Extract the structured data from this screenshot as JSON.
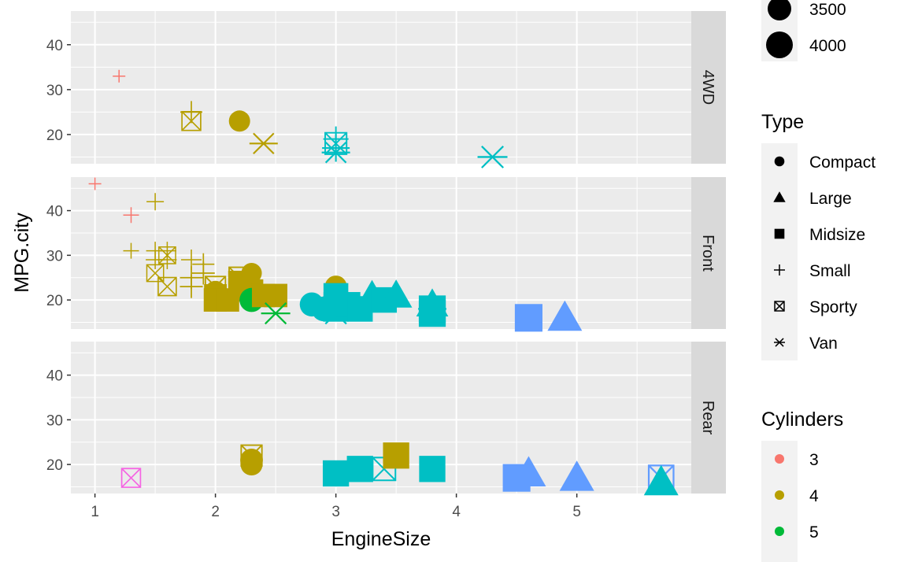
{
  "chart_data": {
    "type": "scatter",
    "title": "",
    "xlabel": "EngineSize",
    "ylabel": "MPG.city",
    "xlim": [
      0.8,
      5.95
    ],
    "ylim": [
      13.5,
      47.5
    ],
    "x_ticks": [
      1,
      2,
      3,
      4,
      5
    ],
    "y_ticks": [
      20,
      30,
      40
    ],
    "grid": true,
    "facets": [
      "4WD",
      "Front",
      "Rear"
    ],
    "legend_placement": "right",
    "legends": {
      "size": {
        "title": "",
        "entries": [
          {
            "label": "3500",
            "value": 3500
          },
          {
            "label": "4000",
            "value": 4000
          }
        ]
      },
      "type": {
        "title": "Type",
        "entries": [
          {
            "label": "Compact",
            "shape": "circle"
          },
          {
            "label": "Large",
            "shape": "triangle"
          },
          {
            "label": "Midsize",
            "shape": "square"
          },
          {
            "label": "Small",
            "shape": "plus"
          },
          {
            "label": "Sporty",
            "shape": "boxx"
          },
          {
            "label": "Van",
            "shape": "asterisk"
          }
        ]
      },
      "cylinders": {
        "title": "Cylinders",
        "entries": [
          {
            "label": "3",
            "color": "#F8766D"
          },
          {
            "label": "4",
            "color": "#B79F00"
          },
          {
            "label": "5",
            "color": "#00BA38"
          }
        ]
      }
    },
    "colors": {
      "3": "#F8766D",
      "4": "#B79F00",
      "5": "#00BA38",
      "6": "#00BFC4",
      "8": "#619CFF",
      "rotary": "#F564E3"
    },
    "points": {
      "4WD": [
        {
          "x": 1.2,
          "y": 33,
          "type": "Small",
          "cyl": "3",
          "w": 1700
        },
        {
          "x": 1.8,
          "y": 25,
          "type": "Small",
          "cyl": "4",
          "w": 2900
        },
        {
          "x": 1.8,
          "y": 23,
          "type": "Sporty",
          "cyl": "4",
          "w": 2900
        },
        {
          "x": 2.2,
          "y": 23,
          "type": "Compact",
          "cyl": "4",
          "w": 3100
        },
        {
          "x": 2.4,
          "y": 18,
          "type": "Van",
          "cyl": "4",
          "w": 3700
        },
        {
          "x": 3.0,
          "y": 19,
          "type": "Small",
          "cyl": "6",
          "w": 3300
        },
        {
          "x": 3.0,
          "y": 18,
          "type": "Sporty",
          "cyl": "6",
          "w": 3300
        },
        {
          "x": 3.0,
          "y": 16,
          "type": "Van",
          "cyl": "6",
          "w": 3700
        },
        {
          "x": 3.0,
          "y": 17,
          "type": "Small",
          "cyl": "6",
          "w": 3600
        },
        {
          "x": 4.3,
          "y": 15,
          "type": "Van",
          "cyl": "6",
          "w": 3900
        }
      ],
      "Front": [
        {
          "x": 1.0,
          "y": 46,
          "type": "Small",
          "cyl": "3",
          "w": 1700
        },
        {
          "x": 1.3,
          "y": 39,
          "type": "Small",
          "cyl": "3",
          "w": 2100
        },
        {
          "x": 1.5,
          "y": 42,
          "type": "Small",
          "cyl": "4",
          "w": 2300
        },
        {
          "x": 1.3,
          "y": 31,
          "type": "Small",
          "cyl": "4",
          "w": 2100
        },
        {
          "x": 1.5,
          "y": 31,
          "type": "Small",
          "cyl": "4",
          "w": 2400
        },
        {
          "x": 1.5,
          "y": 29,
          "type": "Small",
          "cyl": "4",
          "w": 2500
        },
        {
          "x": 1.6,
          "y": 31,
          "type": "Small",
          "cyl": "4",
          "w": 2400
        },
        {
          "x": 1.6,
          "y": 29,
          "type": "Small",
          "cyl": "4",
          "w": 2500
        },
        {
          "x": 1.5,
          "y": 26,
          "type": "Sporty",
          "cyl": "4",
          "w": 2600
        },
        {
          "x": 1.6,
          "y": 30,
          "type": "Sporty",
          "cyl": "4",
          "w": 2600
        },
        {
          "x": 1.6,
          "y": 23,
          "type": "Sporty",
          "cyl": "4",
          "w": 2800
        },
        {
          "x": 1.8,
          "y": 29,
          "type": "Small",
          "cyl": "4",
          "w": 2700
        },
        {
          "x": 1.8,
          "y": 25,
          "type": "Small",
          "cyl": "4",
          "w": 3000
        },
        {
          "x": 1.9,
          "y": 28,
          "type": "Small",
          "cyl": "4",
          "w": 2900
        },
        {
          "x": 1.9,
          "y": 26,
          "type": "Small",
          "cyl": "4",
          "w": 3000
        },
        {
          "x": 1.8,
          "y": 23,
          "type": "Small",
          "cyl": "4",
          "w": 3000
        },
        {
          "x": 2.0,
          "y": 23,
          "type": "Sporty",
          "cyl": "4",
          "w": 3100
        },
        {
          "x": 2.0,
          "y": 22,
          "type": "Compact",
          "cyl": "4",
          "w": 3000
        },
        {
          "x": 2.0,
          "y": 21,
          "type": "Midsize",
          "cyl": "4",
          "w": 3300
        },
        {
          "x": 2.0,
          "y": 20,
          "type": "Midsize",
          "cyl": "4",
          "w": 3400
        },
        {
          "x": 2.1,
          "y": 20,
          "type": "Midsize",
          "cyl": "4",
          "w": 3400
        },
        {
          "x": 2.2,
          "y": 25,
          "type": "Sporty",
          "cyl": "4",
          "w": 3200
        },
        {
          "x": 2.2,
          "y": 24,
          "type": "Midsize",
          "cyl": "4",
          "w": 3300
        },
        {
          "x": 2.2,
          "y": 22,
          "type": "Compact",
          "cyl": "4",
          "w": 3100
        },
        {
          "x": 2.3,
          "y": 22,
          "type": "Midsize",
          "cyl": "4",
          "w": 3400
        },
        {
          "x": 2.4,
          "y": 21,
          "type": "Midsize",
          "cyl": "4",
          "w": 3400
        },
        {
          "x": 2.3,
          "y": 26,
          "type": "Compact",
          "cyl": "4",
          "w": 3000
        },
        {
          "x": 2.5,
          "y": 21,
          "type": "Midsize",
          "cyl": "4",
          "w": 3400
        },
        {
          "x": 2.3,
          "y": 20,
          "type": "Compact",
          "cyl": "5",
          "w": 3500
        },
        {
          "x": 2.5,
          "y": 17,
          "type": "Van",
          "cyl": "5",
          "w": 3800
        },
        {
          "x": 2.8,
          "y": 19,
          "type": "Compact",
          "cyl": "6",
          "w": 3500
        },
        {
          "x": 2.9,
          "y": 18,
          "type": "Compact",
          "cyl": "6",
          "w": 3600
        },
        {
          "x": 3.0,
          "y": 23,
          "type": "Compact",
          "cyl": "4",
          "w": 3200
        },
        {
          "x": 3.0,
          "y": 21,
          "type": "Midsize",
          "cyl": "6",
          "w": 3600
        },
        {
          "x": 3.0,
          "y": 19,
          "type": "Midsize",
          "cyl": "6",
          "w": 3600
        },
        {
          "x": 3.0,
          "y": 18,
          "type": "Midsize",
          "cyl": "6",
          "w": 3700
        },
        {
          "x": 3.0,
          "y": 17,
          "type": "Van",
          "cyl": "6",
          "w": 3800
        },
        {
          "x": 3.1,
          "y": 19,
          "type": "Midsize",
          "cyl": "6",
          "w": 3600
        },
        {
          "x": 3.2,
          "y": 18,
          "type": "Midsize",
          "cyl": "6",
          "w": 3700
        },
        {
          "x": 3.3,
          "y": 21,
          "type": "Large",
          "cyl": "6",
          "w": 3700
        },
        {
          "x": 3.4,
          "y": 20,
          "type": "Midsize",
          "cyl": "6",
          "w": 3700
        },
        {
          "x": 3.5,
          "y": 21,
          "type": "Large",
          "cyl": "6",
          "w": 3800
        },
        {
          "x": 3.8,
          "y": 19,
          "type": "Large",
          "cyl": "6",
          "w": 3800
        },
        {
          "x": 3.8,
          "y": 18,
          "type": "Midsize",
          "cyl": "6",
          "w": 3900
        },
        {
          "x": 3.8,
          "y": 17,
          "type": "Midsize",
          "cyl": "6",
          "w": 3900
        },
        {
          "x": 3.8,
          "y": 18,
          "type": "Van",
          "cyl": "6",
          "w": 3700
        },
        {
          "x": 4.6,
          "y": 16,
          "type": "Midsize",
          "cyl": "8",
          "w": 4000
        },
        {
          "x": 4.9,
          "y": 16,
          "type": "Large",
          "cyl": "8",
          "w": 4100
        }
      ],
      "Rear": [
        {
          "x": 1.3,
          "y": 17,
          "type": "Sporty",
          "cyl": "rotary",
          "w": 2900
        },
        {
          "x": 2.3,
          "y": 22,
          "type": "Sporty",
          "cyl": "4",
          "w": 3200
        },
        {
          "x": 2.3,
          "y": 20,
          "type": "Compact",
          "cyl": "4",
          "w": 3200
        },
        {
          "x": 2.3,
          "y": 21,
          "type": "Compact",
          "cyl": "4",
          "w": 3300
        },
        {
          "x": 3.5,
          "y": 22,
          "type": "Midsize",
          "cyl": "4",
          "w": 3800
        },
        {
          "x": 3.0,
          "y": 18,
          "type": "Midsize",
          "cyl": "6",
          "w": 3800
        },
        {
          "x": 3.2,
          "y": 19,
          "type": "Midsize",
          "cyl": "6",
          "w": 3800
        },
        {
          "x": 3.4,
          "y": 19,
          "type": "Sporty",
          "cyl": "6",
          "w": 3500
        },
        {
          "x": 3.8,
          "y": 19,
          "type": "Midsize",
          "cyl": "6",
          "w": 3800
        },
        {
          "x": 4.5,
          "y": 17,
          "type": "Midsize",
          "cyl": "8",
          "w": 4000
        },
        {
          "x": 4.6,
          "y": 18,
          "type": "Large",
          "cyl": "8",
          "w": 4100
        },
        {
          "x": 5.0,
          "y": 17,
          "type": "Large",
          "cyl": "8",
          "w": 4100
        },
        {
          "x": 5.7,
          "y": 17,
          "type": "Sporty",
          "cyl": "8",
          "w": 3800
        },
        {
          "x": 5.7,
          "y": 16,
          "type": "Large",
          "cyl": "6",
          "w": 4100
        }
      ]
    }
  }
}
